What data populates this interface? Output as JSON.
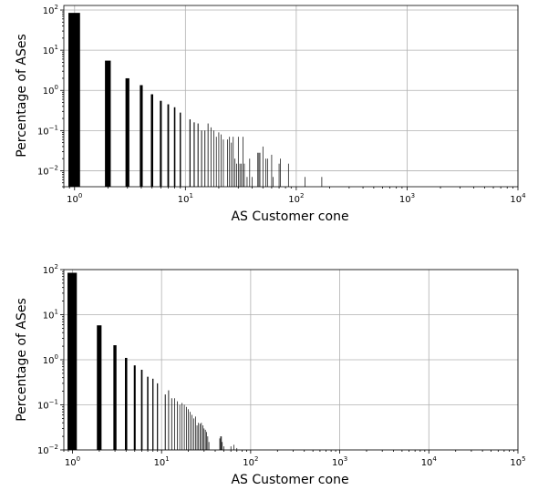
{
  "chart_data": [
    {
      "type": "bar",
      "xlabel": "AS Customer cone",
      "ylabel": "Percentage of ASes",
      "xscale": "log",
      "yscale": "log",
      "grid": true,
      "xlim": [
        0.8,
        10000
      ],
      "ylim": [
        0.004,
        130
      ],
      "x_ticks": [
        {
          "value": 1,
          "base": "10",
          "exp": "0"
        },
        {
          "value": 10,
          "base": "10",
          "exp": "1"
        },
        {
          "value": 100,
          "base": "10",
          "exp": "2"
        },
        {
          "value": 1000,
          "base": "10",
          "exp": "3"
        },
        {
          "value": 10000,
          "base": "10",
          "exp": "4"
        }
      ],
      "y_ticks": [
        {
          "value": 0.01,
          "base": "10",
          "exp": "−2"
        },
        {
          "value": 0.1,
          "base": "10",
          "exp": "−1"
        },
        {
          "value": 1,
          "base": "10",
          "exp": "0"
        },
        {
          "value": 10,
          "base": "10",
          "exp": "1"
        },
        {
          "value": 100,
          "base": "10",
          "exp": "2"
        }
      ],
      "x": [
        1,
        2,
        3,
        4,
        5,
        6,
        7,
        8,
        9,
        11,
        12,
        13,
        14,
        15,
        16,
        17,
        18,
        19,
        20,
        21,
        22,
        24,
        25,
        26,
        27,
        28,
        29,
        30,
        31,
        32,
        33,
        34,
        36,
        38,
        40,
        45,
        46,
        47,
        50,
        53,
        55,
        60,
        62,
        70,
        72,
        85,
        120,
        170
      ],
      "values": [
        85,
        5.5,
        2.0,
        1.35,
        0.8,
        0.55,
        0.45,
        0.38,
        0.28,
        0.19,
        0.16,
        0.15,
        0.1,
        0.1,
        0.15,
        0.12,
        0.1,
        0.07,
        0.09,
        0.08,
        0.06,
        0.06,
        0.07,
        0.05,
        0.07,
        0.02,
        0.015,
        0.07,
        0.015,
        0.015,
        0.07,
        0.015,
        0.007,
        0.02,
        0.007,
        0.028,
        0.028,
        0.028,
        0.04,
        0.02,
        0.02,
        0.025,
        0.007,
        0.015,
        0.02,
        0.015,
        0.007,
        0.007
      ]
    },
    {
      "type": "bar",
      "xlabel": "AS Customer cone",
      "ylabel": "Percentage of ASes",
      "xscale": "log",
      "yscale": "log",
      "grid": true,
      "xlim": [
        0.8,
        100000
      ],
      "ylim": [
        0.01,
        100
      ],
      "x_ticks": [
        {
          "value": 1,
          "base": "10",
          "exp": "0"
        },
        {
          "value": 10,
          "base": "10",
          "exp": "1"
        },
        {
          "value": 100,
          "base": "10",
          "exp": "2"
        },
        {
          "value": 1000,
          "base": "10",
          "exp": "3"
        },
        {
          "value": 10000,
          "base": "10",
          "exp": "4"
        },
        {
          "value": 100000,
          "base": "10",
          "exp": "5"
        }
      ],
      "y_ticks": [
        {
          "value": 0.01,
          "base": "10",
          "exp": "−2"
        },
        {
          "value": 0.1,
          "base": "10",
          "exp": "−1"
        },
        {
          "value": 1,
          "base": "10",
          "exp": "0"
        },
        {
          "value": 10,
          "base": "10",
          "exp": "1"
        },
        {
          "value": 100,
          "base": "10",
          "exp": "2"
        }
      ],
      "x": [
        1,
        2,
        3,
        4,
        5,
        6,
        7,
        8,
        9,
        11,
        12,
        13,
        14,
        15,
        16,
        17,
        18,
        19,
        20,
        21,
        22,
        23,
        24,
        25,
        26,
        27,
        28,
        29,
        30,
        31,
        32,
        33,
        34,
        45,
        46,
        47,
        48,
        50,
        60,
        65,
        70
      ],
      "values": [
        85,
        5.8,
        2.1,
        1.1,
        0.75,
        0.6,
        0.42,
        0.38,
        0.3,
        0.17,
        0.21,
        0.14,
        0.14,
        0.12,
        0.1,
        0.11,
        0.1,
        0.09,
        0.08,
        0.07,
        0.06,
        0.05,
        0.055,
        0.035,
        0.04,
        0.038,
        0.04,
        0.035,
        0.03,
        0.028,
        0.025,
        0.02,
        0.015,
        0.018,
        0.02,
        0.02,
        0.015,
        0.012,
        0.012,
        0.013,
        0.011
      ]
    }
  ]
}
